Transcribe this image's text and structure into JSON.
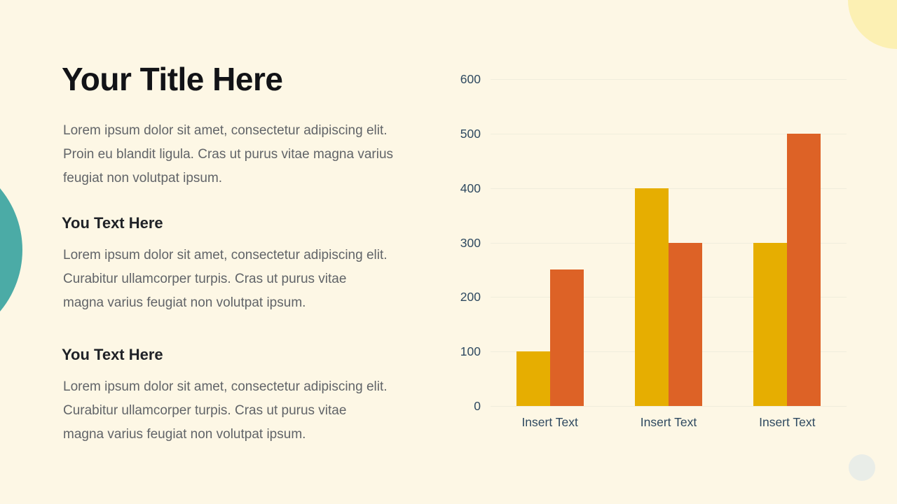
{
  "slide": {
    "background": "#FDF7E5",
    "title": "Your Title Here",
    "intro": "Lorem ipsum dolor sit amet, consectetur adipiscing elit. Proin eu blandit ligula. Cras ut purus vitae magna varius feugiat non volutpat ipsum.",
    "sections": [
      {
        "heading": "You Text Here",
        "body": "Lorem ipsum dolor sit amet, consectetur adipiscing elit. Curabitur ullamcorper turpis. Cras ut purus vitae magna varius feugiat non volutpat ipsum."
      },
      {
        "heading": "You Text Here",
        "body": "Lorem ipsum dolor sit amet, consectetur adipiscing elit. Curabitur ullamcorper turpis. Cras ut purus vitae magna varius feugiat non volutpat ipsum."
      }
    ]
  },
  "decorations": {
    "teal_circle_color": "#4BABA6",
    "yellow_circle_color": "#FCF0B3",
    "gray_circle_color": "#E9EDE8"
  },
  "chart_data": {
    "type": "bar",
    "categories": [
      "Insert Text",
      "Insert Text",
      "Insert Text"
    ],
    "series": [
      {
        "color": "#E6AE01",
        "values": [
          100,
          400,
          300
        ]
      },
      {
        "color": "#DD6226",
        "values": [
          250,
          300,
          500
        ]
      }
    ],
    "title": "",
    "xlabel": "",
    "ylabel": "",
    "ylim": [
      0,
      600
    ],
    "yticks": [
      0,
      100,
      200,
      300,
      400,
      500,
      600
    ],
    "grid": true,
    "legend_position": "none",
    "axis_label_color": "#2E4960",
    "gridline_color": "#F0EDDC"
  }
}
